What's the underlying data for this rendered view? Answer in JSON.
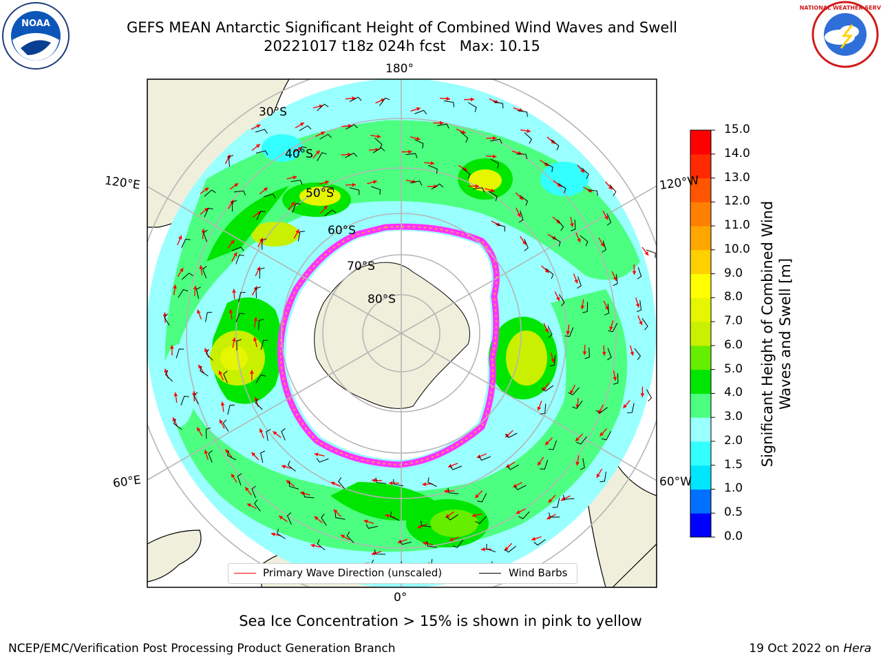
{
  "header": {
    "title": "GEFS MEAN Antarctic Significant Height of Combined Wind Waves and Swell",
    "subtitle": "20221017 t18z 024h fcst   Max: 10.15"
  },
  "logos": {
    "left_icon": "noaa-logo",
    "right_icon": "nws-logo"
  },
  "map": {
    "projection": "south-polar-stereographic",
    "longitude_labels": [
      "180°",
      "120°E",
      "120°W",
      "60°E",
      "60°W",
      "0°"
    ],
    "latitude_labels": [
      "30°S",
      "40°S",
      "50°S",
      "60°S",
      "70°S",
      "80°S"
    ],
    "land_color": "#efefdc",
    "ice_colors": [
      "#ff33ff",
      "#ffb030"
    ]
  },
  "colorbar": {
    "label": "Significant Height of Combined Wind Waves and Swell [m]",
    "ticks": [
      "0.0",
      "0.5",
      "1.0",
      "1.5",
      "2.0",
      "3.0",
      "4.0",
      "5.0",
      "6.0",
      "7.0",
      "8.0",
      "9.0",
      "10.0",
      "11.0",
      "12.0",
      "13.0",
      "14.0",
      "15.0"
    ],
    "colors": [
      "#0000ff",
      "#0070ff",
      "#00e6ff",
      "#33ffff",
      "#99ffff",
      "#4dff80",
      "#00e600",
      "#66ee00",
      "#c8f000",
      "#e6f500",
      "#ffff00",
      "#ffd000",
      "#ffa600",
      "#ff8000",
      "#ff5500",
      "#ff2a00",
      "#ff0000"
    ]
  },
  "legend": {
    "items": [
      {
        "label": "Primary Wave Direction (unscaled)",
        "color": "#ff0000"
      },
      {
        "label": "Wind Barbs",
        "color": "#000000"
      }
    ]
  },
  "footer": {
    "note": "Sea Ice Concentration > 15% is shown in pink to yellow",
    "credit": "NCEP/EMC/Verification Post Processing Product Generation Branch",
    "date": "19 Oct 2022 on",
    "machine": "Hera"
  }
}
